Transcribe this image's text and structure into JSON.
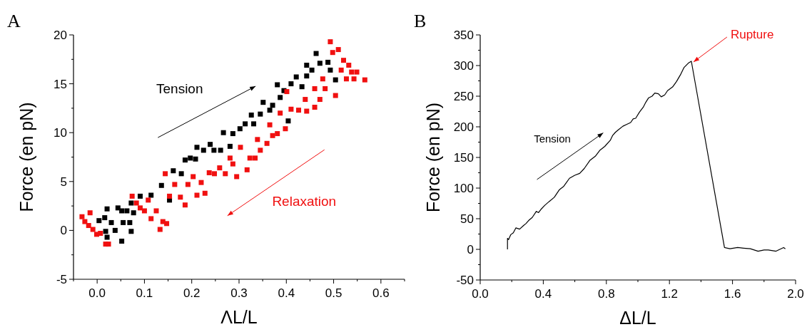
{
  "chart_data": [
    {
      "type": "scatter",
      "title": "A",
      "xlabel": "ΛL/L",
      "ylabel": "Force (en pN)",
      "marker": "square",
      "xlim": [
        -0.05,
        0.65
      ],
      "ylim": [
        -5,
        20
      ],
      "xticks": [
        {
          "value": -0.05,
          "label": null
        },
        {
          "value": 0,
          "label": "0.0"
        },
        {
          "value": 0.05,
          "label": null
        },
        0.1,
        {
          "value": 0.15,
          "label": null
        },
        0.2,
        {
          "value": 0.25,
          "label": null
        },
        0.3,
        {
          "value": 0.35,
          "label": null
        },
        0.4,
        {
          "value": 0.45,
          "label": null
        },
        0.5,
        {
          "value": 0.55,
          "label": null
        },
        0.6,
        {
          "value": 0.65,
          "label": null
        }
      ],
      "yticks": [
        -5,
        {
          "value": -2.5,
          "label": null
        },
        0,
        {
          "value": 2.5,
          "label": null
        },
        5,
        {
          "value": 7.5,
          "label": null
        },
        10,
        {
          "value": 12.5,
          "label": null
        },
        15,
        {
          "value": 17.5,
          "label": null
        },
        20
      ],
      "annotations": [
        "Tension",
        "Relaxation"
      ],
      "series": [
        {
          "color": "#000000",
          "x": [
            0.004,
            0.016,
            0.018,
            0.021,
            0.021,
            0.03,
            0.038,
            0.044,
            0.052,
            0.052,
            0.055,
            0.063,
            0.069,
            0.072,
            0.072,
            0.077,
            0.091,
            0.114,
            0.136,
            0.153,
            0.161,
            0.178,
            0.186,
            0.197,
            0.208,
            0.211,
            0.225,
            0.239,
            0.247,
            0.261,
            0.267,
            0.281,
            0.287,
            0.302,
            0.313,
            0.326,
            0.331,
            0.345,
            0.351,
            0.365,
            0.371,
            0.381,
            0.387,
            0.395,
            0.404,
            0.41,
            0.421,
            0.433,
            0.443,
            0.443,
            0.454,
            0.463,
            0.471,
            0.488,
            0.493,
            0.504
          ],
          "values": [
            1.0,
            1.3,
            -0.1,
            -0.7,
            2.2,
            0.8,
            0,
            2.3,
            -1.1,
            2.0,
            0.8,
            2.0,
            0.8,
            -0.1,
            2.8,
            1.8,
            3.5,
            3.6,
            4.6,
            3.1,
            6.1,
            5.8,
            7.2,
            7.4,
            7.3,
            8.5,
            8.2,
            8.8,
            8.2,
            8.2,
            10.0,
            8.6,
            9.9,
            10.4,
            10.9,
            11.8,
            10.9,
            11.9,
            13.1,
            12.3,
            12.8,
            14.9,
            13.6,
            14.3,
            11.2,
            15.0,
            15.7,
            14.7,
            15.8,
            16.9,
            16.4,
            18.1,
            17.1,
            17.2,
            16.4,
            15.4
          ]
        },
        {
          "color": "#f01010",
          "x": [
            -0.032,
            -0.026,
            -0.015,
            -0.018,
            -0.009,
            -0.001,
            0.007,
            0.018,
            0.024,
            0.074,
            0.083,
            0.091,
            0.1,
            0.108,
            0.114,
            0.125,
            0.133,
            0.139,
            0.147,
            0.144,
            0.153,
            0.164,
            0.176,
            0.186,
            0.192,
            0.203,
            0.211,
            0.22,
            0.228,
            0.237,
            0.248,
            0.259,
            0.271,
            0.281,
            0.287,
            0.295,
            0.303,
            0.317,
            0.323,
            0.334,
            0.339,
            0.345,
            0.359,
            0.365,
            0.371,
            0.381,
            0.387,
            0.398,
            0.401,
            0.41,
            0.426,
            0.44,
            0.443,
            0.46,
            0.46,
            0.471,
            0.477,
            0.482,
            0.493,
            0.498,
            0.504,
            0.51,
            0.516,
            0.521,
            0.527,
            0.532,
            0.538,
            0.543,
            0.549,
            0.566
          ],
          "values": [
            1.4,
            0.9,
            1.8,
            0.5,
            0.1,
            -0.4,
            -0.3,
            -1.4,
            -1.4,
            3.5,
            2.8,
            2.3,
            2.0,
            3.1,
            1.2,
            2.0,
            0.1,
            0.9,
            0.7,
            5.8,
            3.5,
            4.7,
            3.4,
            2.6,
            4.7,
            5.5,
            3.6,
            4.9,
            3.8,
            5.9,
            5.8,
            6.4,
            5.8,
            7.4,
            6.8,
            5.5,
            8.5,
            6.2,
            7.4,
            7.4,
            9.3,
            8.2,
            8.9,
            10.8,
            9.7,
            9.9,
            12.0,
            10.4,
            14.2,
            12.4,
            12.3,
            13.4,
            12.2,
            14.5,
            12.6,
            13.4,
            15.5,
            14.5,
            19.3,
            18.2,
            13.8,
            18.5,
            16.4,
            17.4,
            15.5,
            16.9,
            16.2,
            15.5,
            16.2,
            15.4
          ]
        }
      ]
    },
    {
      "type": "line",
      "title": "B",
      "xlabel": "ΔL/L",
      "ylabel": "Force (en pN)",
      "marker": "none",
      "line_style": "solid",
      "xlim": [
        0,
        2.0
      ],
      "ylim": [
        -50,
        350
      ],
      "xticks": [
        {
          "value": 0,
          "label": "0.0"
        },
        {
          "value": 0.2,
          "label": null
        },
        0.4,
        {
          "value": 0.6,
          "label": null
        },
        0.8,
        {
          "value": 1.0,
          "label": null
        },
        1.2,
        {
          "value": 1.4,
          "label": null
        },
        1.6,
        {
          "value": 1.8,
          "label": null
        },
        {
          "value": 2.0,
          "label": "2.0"
        }
      ],
      "yticks": [
        -50,
        {
          "value": -25,
          "label": null
        },
        0,
        {
          "value": 25,
          "label": null
        },
        50,
        {
          "value": 75,
          "label": null
        },
        100,
        {
          "value": 125,
          "label": null
        },
        150,
        {
          "value": 175,
          "label": null
        },
        200,
        {
          "value": 225,
          "label": null
        },
        250,
        {
          "value": 275,
          "label": null
        },
        300,
        {
          "value": 325,
          "label": null
        },
        350
      ],
      "annotations": [
        "Tension",
        {
          "text": "Rupture",
          "x": 1.339,
          "y": 307
        }
      ],
      "series": [
        {
          "color": "#000000",
          "x": [
            0.173,
            0.173,
            0.18,
            0.194,
            0.21,
            0.226,
            0.25,
            0.275,
            0.29,
            0.307,
            0.33,
            0.356,
            0.37,
            0.388,
            0.41,
            0.437,
            0.47,
            0.501,
            0.53,
            0.566,
            0.6,
            0.631,
            0.66,
            0.695,
            0.73,
            0.76,
            0.79,
            0.825,
            0.84,
            0.857,
            0.88,
            0.905,
            0.93,
            0.954,
            0.97,
            0.986,
            1.01,
            1.034,
            1.05,
            1.067,
            1.09,
            1.107,
            1.13,
            1.148,
            1.17,
            1.188,
            1.22,
            1.245,
            1.27,
            1.293,
            1.32,
            1.339,
            1.549,
            1.584,
            1.633,
            1.67,
            1.713,
            1.762,
            1.8,
            1.827,
            1.876,
            1.9,
            1.924,
            1.935
          ],
          "values": [
            0,
            18,
            16,
            24,
            27,
            35,
            33,
            39,
            42,
            47,
            52,
            62,
            60,
            66,
            72,
            78,
            85,
            97,
            103,
            116,
            121,
            124,
            132,
            145,
            152,
            162,
            168,
            178,
            186,
            191,
            196,
            201,
            204,
            207,
            213,
            214,
            224,
            232,
            240,
            247,
            250,
            255,
            254,
            249,
            252,
            259,
            265,
            274,
            285,
            297,
            304,
            307,
            3,
            1,
            3,
            2,
            1,
            -3,
            -1,
            -1,
            -3,
            0,
            3,
            1
          ]
        }
      ]
    }
  ]
}
